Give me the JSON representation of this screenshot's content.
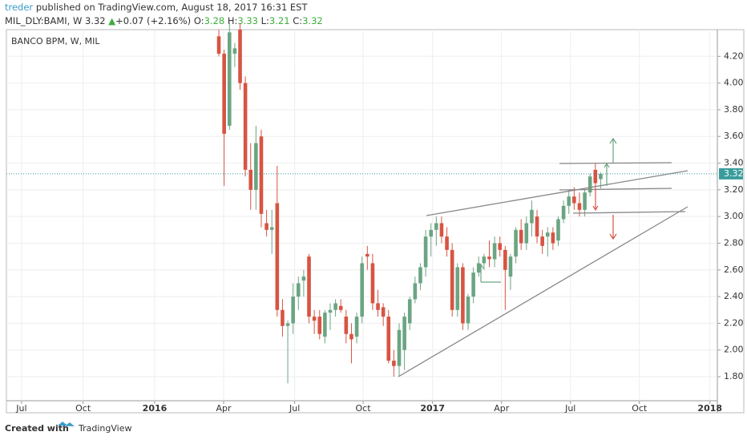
{
  "header": {
    "author": "treder",
    "published": "published on TradingView.com, August 18, 2017 16:31 EST",
    "symbol": "MIL_DLY:BAMI, W",
    "price": "3.32",
    "arrow": "▲",
    "change": "+0.07 (+2.16%)",
    "o_label": "O:",
    "o": "3.28",
    "h_label": "H:",
    "h": "3.33",
    "l_label": "L:",
    "l": "3.21",
    "c_label": "C:",
    "c": "3.32"
  },
  "footer": {
    "created_with": "Created with",
    "brand": "TradingView"
  },
  "chart_data": {
    "type": "candlestick",
    "label": "BANCO BPM, W, MIL",
    "up_color": "#6ba583",
    "down_color": "#d75442",
    "last_price": 3.32,
    "last_price_color": "#3a9c9c",
    "xlim": [
      0,
      133
    ],
    "ylim": [
      1.62,
      4.4
    ],
    "xticks": [
      {
        "value": 1.8,
        "label": "Jul"
      },
      {
        "value": 13.4,
        "label": "Oct"
      },
      {
        "value": 26.9,
        "label": "2016"
      },
      {
        "value": 39.9,
        "label": "Apr"
      },
      {
        "value": 53.3,
        "label": "Jul"
      },
      {
        "value": 66.2,
        "label": "Oct"
      },
      {
        "value": 79.3,
        "label": "2017"
      },
      {
        "value": 92.3,
        "label": "Apr"
      },
      {
        "value": 105.3,
        "label": "Jul"
      },
      {
        "value": 118.3,
        "label": "Oct"
      },
      {
        "value": 131.6,
        "label": "2018"
      }
    ],
    "yticks": [
      {
        "value": 1.8,
        "label": "1.80"
      },
      {
        "value": 2.0,
        "label": "2.00"
      },
      {
        "value": 2.2,
        "label": "2.20"
      },
      {
        "value": 2.4,
        "label": "2.40"
      },
      {
        "value": 2.6,
        "label": "2.60"
      },
      {
        "value": 2.8,
        "label": "2.80"
      },
      {
        "value": 3.0,
        "label": "3.00"
      },
      {
        "value": 3.2,
        "label": "3.20"
      },
      {
        "value": 3.4,
        "label": "3.40"
      },
      {
        "value": 3.6,
        "label": "3.60"
      },
      {
        "value": 3.8,
        "label": "3.80"
      },
      {
        "value": 4.0,
        "label": "4.00"
      },
      {
        "value": 4.2,
        "label": "4.20"
      }
    ],
    "grid": true,
    "x": [
      39,
      40,
      41,
      42,
      43,
      44,
      45,
      46,
      47,
      48,
      49,
      50,
      51,
      52,
      53,
      54,
      55,
      56,
      57,
      58,
      59,
      60,
      61,
      62,
      63,
      64,
      65,
      66,
      67,
      68,
      69,
      70,
      71,
      72,
      73,
      74,
      75,
      76,
      77,
      78,
      79,
      80,
      81,
      82,
      83,
      84,
      85,
      86,
      87,
      88,
      89,
      90,
      91,
      92,
      93,
      94,
      95,
      96,
      97,
      98,
      99,
      100,
      101,
      102,
      103,
      104,
      105,
      106,
      107,
      108,
      109,
      110,
      111
    ],
    "open": [
      4.35,
      4.22,
      3.68,
      4.22,
      4.4,
      4.0,
      3.35,
      3.2,
      3.6,
      2.95,
      2.9,
      3.1,
      2.3,
      2.18,
      2.2,
      2.4,
      2.52,
      2.7,
      2.25,
      2.25,
      2.1,
      2.28,
      2.3,
      2.33,
      2.25,
      2.12,
      2.1,
      2.25,
      2.72,
      2.65,
      2.35,
      2.32,
      2.25,
      1.92,
      1.88,
      2.0,
      2.2,
      2.38,
      2.5,
      2.62,
      2.85,
      2.9,
      2.95,
      2.85,
      2.75,
      2.3,
      2.62,
      2.2,
      2.4,
      2.58,
      2.65,
      2.7,
      2.68,
      2.8,
      2.75,
      2.55,
      2.7,
      2.9,
      2.8,
      2.95,
      3.0,
      2.85,
      2.85,
      2.88,
      2.82,
      2.98,
      3.08,
      3.15,
      3.1,
      3.05,
      3.18,
      3.35,
      3.28
    ],
    "high": [
      4.4,
      4.25,
      4.45,
      4.3,
      4.45,
      4.05,
      3.55,
      3.68,
      3.65,
      3.05,
      3.05,
      3.38,
      2.38,
      2.22,
      2.5,
      2.55,
      2.6,
      2.72,
      2.3,
      2.3,
      2.3,
      2.35,
      2.38,
      2.38,
      2.3,
      2.2,
      2.28,
      2.7,
      2.78,
      2.72,
      2.45,
      2.35,
      2.3,
      2.0,
      2.2,
      2.28,
      2.4,
      2.55,
      2.65,
      2.9,
      2.95,
      3.0,
      3.0,
      2.92,
      2.8,
      2.65,
      2.65,
      2.42,
      2.62,
      2.7,
      2.72,
      2.82,
      2.85,
      2.85,
      2.78,
      2.72,
      2.92,
      2.98,
      3.0,
      3.12,
      3.05,
      2.9,
      2.92,
      2.92,
      3.0,
      3.12,
      3.2,
      3.22,
      3.18,
      3.2,
      3.32,
      3.4,
      3.33
    ],
    "low": [
      4.2,
      3.23,
      3.65,
      4.12,
      3.95,
      3.3,
      3.05,
      3.05,
      2.92,
      2.85,
      2.72,
      2.25,
      2.1,
      1.75,
      2.12,
      2.3,
      2.4,
      2.2,
      2.12,
      2.08,
      2.05,
      2.15,
      2.25,
      2.28,
      2.05,
      1.9,
      2.05,
      2.2,
      2.6,
      2.3,
      2.25,
      2.18,
      1.9,
      1.8,
      1.8,
      1.85,
      2.15,
      2.35,
      2.45,
      2.55,
      2.7,
      2.78,
      2.8,
      2.7,
      2.25,
      2.25,
      2.15,
      2.15,
      2.35,
      2.55,
      2.6,
      2.62,
      2.62,
      2.7,
      2.3,
      2.45,
      2.65,
      2.75,
      2.75,
      2.85,
      2.8,
      2.72,
      2.7,
      2.75,
      2.78,
      2.95,
      3.02,
      3.05,
      3.0,
      3.0,
      3.15,
      3.2,
      3.21
    ],
    "close": [
      4.22,
      3.62,
      4.38,
      4.26,
      4.0,
      3.35,
      3.2,
      3.55,
      3.02,
      2.9,
      2.92,
      2.3,
      2.18,
      2.2,
      2.4,
      2.5,
      2.55,
      2.25,
      2.22,
      2.12,
      2.28,
      2.3,
      2.35,
      2.3,
      2.12,
      2.08,
      2.25,
      2.65,
      2.7,
      2.35,
      2.3,
      2.25,
      1.92,
      1.88,
      2.15,
      2.25,
      2.38,
      2.5,
      2.62,
      2.85,
      2.9,
      2.95,
      2.85,
      2.75,
      2.3,
      2.62,
      2.2,
      2.4,
      2.58,
      2.65,
      2.7,
      2.68,
      2.8,
      2.75,
      2.6,
      2.7,
      2.9,
      2.8,
      2.95,
      3.05,
      2.85,
      2.78,
      2.88,
      2.8,
      2.98,
      3.08,
      3.15,
      3.1,
      3.05,
      3.18,
      3.3,
      3.25,
      3.32
    ]
  }
}
